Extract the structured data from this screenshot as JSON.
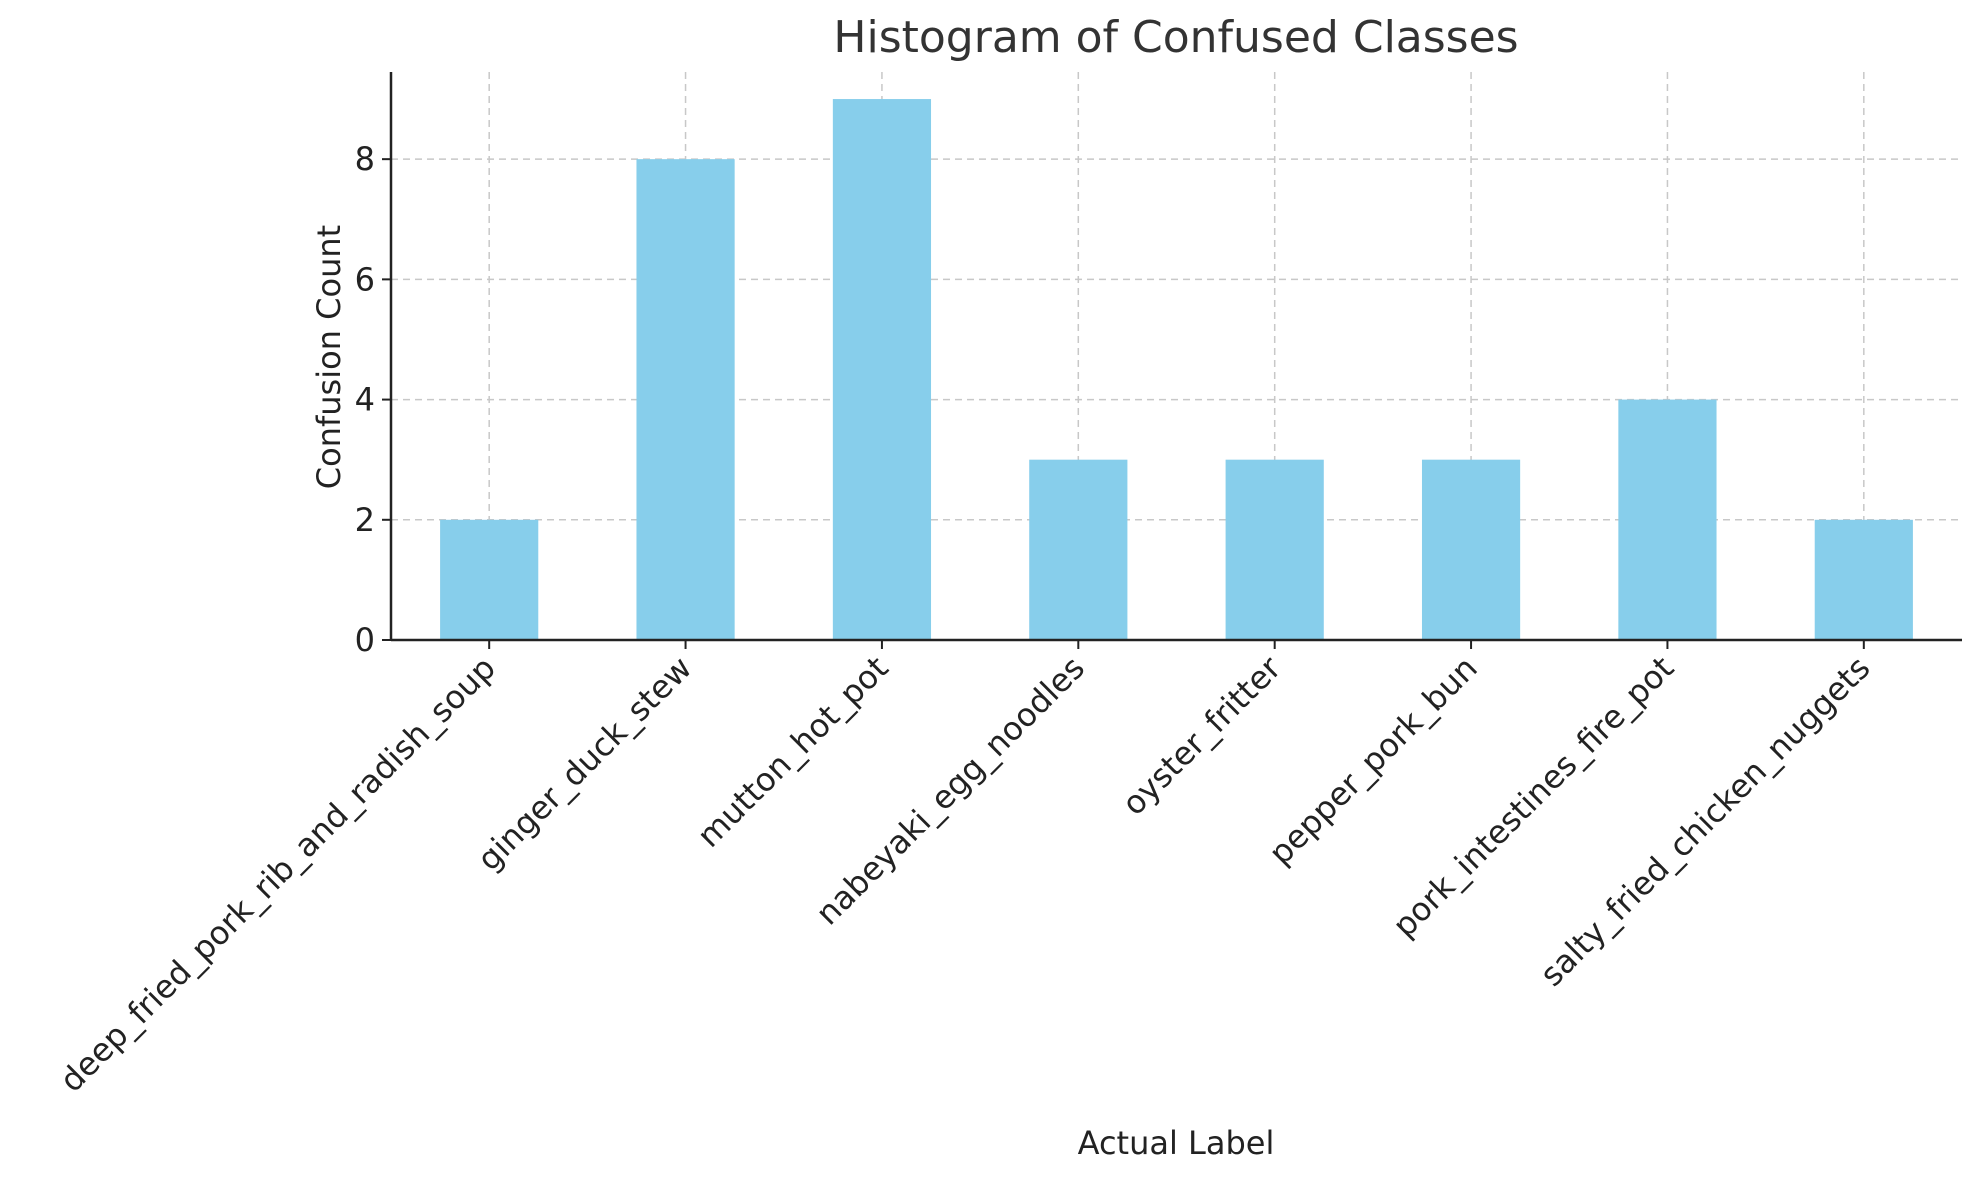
{
  "chart_data": {
    "type": "bar",
    "title": "Histogram of Confused Classes",
    "xlabel": "Actual Label",
    "ylabel": "Confusion Count",
    "categories": [
      "deep_fried_pork_rib_and_radish_soup",
      "ginger_duck_stew",
      "mutton_hot_pot",
      "nabeyaki_egg_noodles",
      "oyster_fritter",
      "pepper_pork_bun",
      "pork_intestines_fire_pot",
      "salty_fried_chicken_nuggets"
    ],
    "values": [
      2,
      8,
      9,
      3,
      3,
      3,
      4,
      2
    ],
    "yticks": [
      0,
      2,
      4,
      6,
      8
    ],
    "ylim": [
      0,
      9.45
    ],
    "grid": true,
    "bar_color": "#87ceeb"
  }
}
